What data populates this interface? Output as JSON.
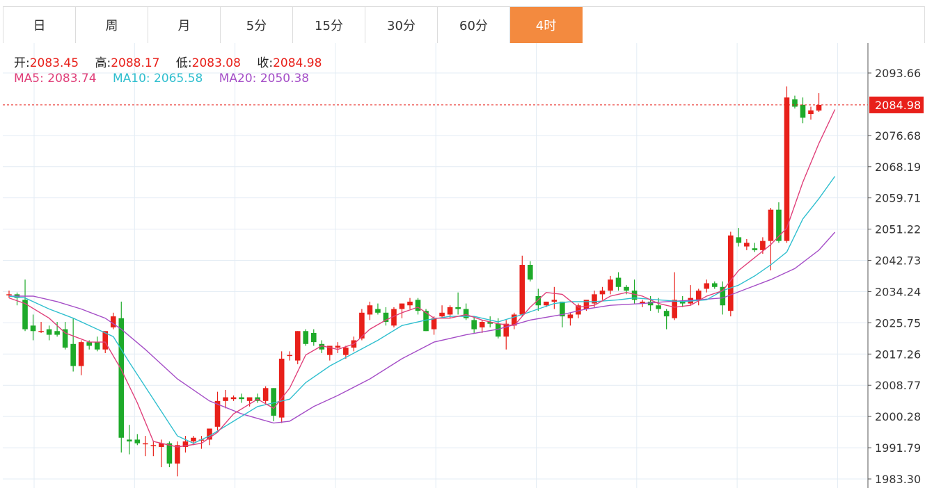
{
  "tabs": [
    {
      "label": "日",
      "active": false
    },
    {
      "label": "周",
      "active": false
    },
    {
      "label": "月",
      "active": false
    },
    {
      "label": "5分",
      "active": false
    },
    {
      "label": "15分",
      "active": false
    },
    {
      "label": "30分",
      "active": false
    },
    {
      "label": "60分",
      "active": false
    },
    {
      "label": "4时",
      "active": true
    }
  ],
  "ohlc": {
    "open_label": "开:",
    "open": "2083.45",
    "high_label": "高:",
    "high": "2088.17",
    "low_label": "低:",
    "low": "2083.08",
    "close_label": "收:",
    "close": "2084.98"
  },
  "ma": {
    "ma5_label": "MA5:",
    "ma5": "2083.74",
    "ma10_label": "MA10:",
    "ma10": "2065.58",
    "ma20_label": "MA20:",
    "ma20": "2050.38"
  },
  "colors": {
    "up": "#e8201a",
    "down": "#1eaa2a",
    "ma5": "#e0407a",
    "ma10": "#30bfcf",
    "ma20": "#a54ec7",
    "active_tab": "#f38a3f",
    "grid": "#e3ecf4"
  },
  "chart_data": {
    "type": "candlestick",
    "current_price": "2084.98",
    "y_ticks": [
      "2093.66",
      "2076.68",
      "2068.19",
      "2059.71",
      "2051.22",
      "2042.73",
      "2034.24",
      "2025.75",
      "2017.26",
      "2008.77",
      "2000.28",
      "1991.79",
      "1983.30"
    ],
    "ylim": [
      1983.3,
      2093.66
    ],
    "candles": [
      [
        2033.5,
        2034.5,
        2032.5,
        2033.5
      ],
      [
        2033.5,
        2034.0,
        2030.5,
        2032.5
      ],
      [
        2032.0,
        2037.5,
        2023.5,
        2024.0
      ],
      [
        2025.0,
        2028.0,
        2021.0,
        2023.5
      ],
      [
        2023.5,
        2026.0,
        2023.0,
        2023.5
      ],
      [
        2024.0,
        2025.0,
        2021.0,
        2022.5
      ],
      [
        2023.5,
        2026.0,
        2022.0,
        2022.5
      ],
      [
        2024.0,
        2026.0,
        2018.5,
        2019.0
      ],
      [
        2020.0,
        2027.0,
        2012.5,
        2014.0
      ],
      [
        2014.0,
        2021.0,
        2011.5,
        2020.5
      ],
      [
        2020.5,
        2021.0,
        2018.5,
        2019.5
      ],
      [
        2020.5,
        2022.0,
        2018.0,
        2018.5
      ],
      [
        2018.5,
        2022.5,
        2017.5,
        2023.5
      ],
      [
        2024.5,
        2028.5,
        2024.0,
        2027.5
      ],
      [
        2027.0,
        2031.5,
        1990.5,
        1994.5
      ],
      [
        1994.0,
        1998.0,
        1990.0,
        1993.5
      ],
      [
        1994.0,
        1995.5,
        1992.5,
        1993.0
      ],
      [
        1993.0,
        1995.0,
        1989.5,
        1993.0
      ],
      [
        1992.5,
        1993.5,
        1989.5,
        1992.5
      ],
      [
        1992.0,
        1994.0,
        1986.5,
        1993.0
      ],
      [
        1993.0,
        1993.5,
        1986.5,
        1987.5
      ],
      [
        1987.5,
        1993.5,
        1984.0,
        1992.5
      ],
      [
        1992.0,
        1995.0,
        1990.5,
        1993.5
      ],
      [
        1993.5,
        1995.0,
        1992.5,
        1994.5
      ],
      [
        1994.0,
        1995.0,
        1991.5,
        1994.0
      ],
      [
        1994.0,
        1997.0,
        1992.5,
        1997.0
      ],
      [
        1997.5,
        2007.0,
        1996.5,
        2004.5
      ],
      [
        2004.5,
        2007.5,
        2002.5,
        2005.5
      ],
      [
        2005.0,
        2006.0,
        2004.5,
        2005.5
      ],
      [
        2005.5,
        2006.5,
        2004.0,
        2005.0
      ],
      [
        2004.5,
        2005.5,
        2003.0,
        2005.5
      ],
      [
        2005.5,
        2006.5,
        2004.0,
        2004.5
      ],
      [
        2004.5,
        2008.5,
        2003.5,
        2008.0
      ],
      [
        2008.0,
        2008.0,
        1999.0,
        2000.5
      ],
      [
        2000.0,
        2018.0,
        1998.5,
        2016.0
      ],
      [
        2017.0,
        2018.0,
        2015.5,
        2017.0
      ],
      [
        2015.5,
        2023.5,
        2014.5,
        2023.5
      ],
      [
        2023.5,
        2024.0,
        2019.5,
        2020.0
      ],
      [
        2023.0,
        2024.0,
        2019.5,
        2020.5
      ],
      [
        2020.0,
        2021.0,
        2017.5,
        2018.5
      ],
      [
        2017.0,
        2019.0,
        2015.5,
        2019.5
      ],
      [
        2019.0,
        2020.5,
        2017.5,
        2019.5
      ],
      [
        2017.0,
        2019.5,
        2016.0,
        2019.0
      ],
      [
        2019.0,
        2022.0,
        2018.0,
        2021.0
      ],
      [
        2021.5,
        2029.5,
        2021.0,
        2028.5
      ],
      [
        2028.0,
        2031.5,
        2026.5,
        2030.5
      ],
      [
        2029.5,
        2031.0,
        2028.0,
        2028.5
      ],
      [
        2028.5,
        2030.0,
        2025.0,
        2026.0
      ],
      [
        2025.0,
        2030.0,
        2024.5,
        2029.5
      ],
      [
        2029.5,
        2031.0,
        2027.0,
        2031.0
      ],
      [
        2030.5,
        2032.5,
        2029.5,
        2031.5
      ],
      [
        2032.0,
        2032.5,
        2028.0,
        2029.0
      ],
      [
        2029.0,
        2029.5,
        2023.5,
        2023.5
      ],
      [
        2024.0,
        2027.5,
        2022.5,
        2027.0
      ],
      [
        2027.5,
        2030.5,
        2027.0,
        2028.5
      ],
      [
        2028.0,
        2030.5,
        2027.0,
        2030.0
      ],
      [
        2030.0,
        2034.0,
        2028.0,
        2029.5
      ],
      [
        2029.5,
        2031.0,
        2026.5,
        2027.0
      ],
      [
        2026.5,
        2027.5,
        2023.0,
        2024.0
      ],
      [
        2024.5,
        2026.5,
        2023.0,
        2026.0
      ],
      [
        2026.0,
        2027.5,
        2024.5,
        2025.5
      ],
      [
        2025.5,
        2027.0,
        2021.5,
        2022.0
      ],
      [
        2022.0,
        2026.5,
        2018.5,
        2025.5
      ],
      [
        2025.0,
        2028.5,
        2024.0,
        2028.0
      ],
      [
        2028.0,
        2044.0,
        2027.5,
        2041.5
      ],
      [
        2041.5,
        2042.5,
        2037.0,
        2037.5
      ],
      [
        2033.0,
        2035.0,
        2029.0,
        2030.5
      ],
      [
        2030.5,
        2031.5,
        2030.0,
        2031.5
      ],
      [
        2031.5,
        2035.5,
        2029.5,
        2032.0
      ],
      [
        2031.5,
        2031.5,
        2024.5,
        2027.5
      ],
      [
        2027.0,
        2028.5,
        2025.0,
        2028.0
      ],
      [
        2028.0,
        2031.0,
        2027.0,
        2030.5
      ],
      [
        2029.5,
        2031.5,
        2029.0,
        2032.0
      ],
      [
        2031.0,
        2034.5,
        2030.0,
        2033.5
      ],
      [
        2033.5,
        2035.5,
        2032.0,
        2034.5
      ],
      [
        2034.5,
        2038.5,
        2033.5,
        2037.5
      ],
      [
        2038.0,
        2039.5,
        2034.5,
        2035.5
      ],
      [
        2035.5,
        2036.0,
        2033.5,
        2034.5
      ],
      [
        2034.5,
        2037.5,
        2031.0,
        2032.0
      ],
      [
        2031.0,
        2032.0,
        2030.0,
        2031.5
      ],
      [
        2031.5,
        2033.0,
        2029.0,
        2030.5
      ],
      [
        2030.5,
        2032.5,
        2028.5,
        2029.5
      ],
      [
        2029.0,
        2029.5,
        2024.0,
        2027.5
      ],
      [
        2027.0,
        2039.5,
        2026.5,
        2032.0
      ],
      [
        2031.5,
        2033.0,
        2030.0,
        2031.0
      ],
      [
        2031.0,
        2036.0,
        2030.5,
        2032.5
      ],
      [
        2032.0,
        2035.0,
        2030.5,
        2034.5
      ],
      [
        2035.0,
        2037.5,
        2034.0,
        2036.5
      ],
      [
        2036.5,
        2037.0,
        2035.0,
        2035.5
      ],
      [
        2035.5,
        2037.0,
        2028.0,
        2030.5
      ],
      [
        2029.0,
        2050.5,
        2027.5,
        2049.5
      ],
      [
        2049.0,
        2051.5,
        2046.5,
        2047.5
      ],
      [
        2046.5,
        2048.5,
        2045.5,
        2047.5
      ],
      [
        2046.0,
        2047.5,
        2045.0,
        2045.5
      ],
      [
        2045.5,
        2049.0,
        2044.5,
        2048.0
      ],
      [
        2048.0,
        2057.0,
        2040.0,
        2056.5
      ],
      [
        2056.5,
        2058.5,
        2047.5,
        2048.0
      ],
      [
        2048.0,
        2090.0,
        2047.5,
        2087.0
      ],
      [
        2086.5,
        2087.5,
        2084.0,
        2084.5
      ],
      [
        2085.0,
        2087.0,
        2080.0,
        2081.5
      ],
      [
        2082.5,
        2084.5,
        2081.0,
        2083.5
      ],
      [
        2083.45,
        2088.17,
        2083.08,
        2084.98
      ]
    ],
    "ma5": [
      [
        0,
        2032.5
      ],
      [
        2,
        2031.0
      ],
      [
        5,
        2027.0
      ],
      [
        7,
        2023.0
      ],
      [
        10,
        2020.5
      ],
      [
        12,
        2020.5
      ],
      [
        14,
        2013.0
      ],
      [
        16,
        2004.0
      ],
      [
        18,
        1993.5
      ],
      [
        21,
        1992.0
      ],
      [
        24,
        1993.0
      ],
      [
        26,
        1996.0
      ],
      [
        28,
        2001.0
      ],
      [
        31,
        2005.0
      ],
      [
        33,
        2002.5
      ],
      [
        35,
        2008.0
      ],
      [
        37,
        2017.0
      ],
      [
        39,
        2019.5
      ],
      [
        41,
        2018.5
      ],
      [
        43,
        2020.0
      ],
      [
        45,
        2024.0
      ],
      [
        47,
        2026.5
      ],
      [
        49,
        2028.5
      ],
      [
        51,
        2030.0
      ],
      [
        53,
        2027.0
      ],
      [
        55,
        2027.0
      ],
      [
        57,
        2028.0
      ],
      [
        59,
        2026.5
      ],
      [
        61,
        2025.5
      ],
      [
        63,
        2025.0
      ],
      [
        65,
        2030.0
      ],
      [
        67,
        2034.0
      ],
      [
        69,
        2033.5
      ],
      [
        71,
        2030.0
      ],
      [
        73,
        2030.5
      ],
      [
        75,
        2033.0
      ],
      [
        77,
        2034.0
      ],
      [
        79,
        2033.0
      ],
      [
        81,
        2031.0
      ],
      [
        83,
        2030.0
      ],
      [
        85,
        2030.5
      ],
      [
        87,
        2033.0
      ],
      [
        89,
        2034.5
      ],
      [
        91,
        2040.0
      ],
      [
        93,
        2043.5
      ],
      [
        95,
        2047.0
      ],
      [
        97,
        2051.5
      ],
      [
        99,
        2064.0
      ],
      [
        101,
        2074.5
      ],
      [
        103,
        2083.74
      ]
    ],
    "ma10": [
      [
        0,
        2033.0
      ],
      [
        2,
        2032.5
      ],
      [
        5,
        2029.5
      ],
      [
        8,
        2027.0
      ],
      [
        10,
        2025.0
      ],
      [
        12,
        2023.0
      ],
      [
        13,
        2022.0
      ],
      [
        15,
        2015.0
      ],
      [
        18,
        2005.0
      ],
      [
        21,
        1995.0
      ],
      [
        23,
        1993.0
      ],
      [
        25,
        1995.0
      ],
      [
        28,
        1999.0
      ],
      [
        31,
        2003.0
      ],
      [
        33,
        2004.0
      ],
      [
        35,
        2005.0
      ],
      [
        37,
        2009.5
      ],
      [
        40,
        2014.0
      ],
      [
        43,
        2017.5
      ],
      [
        46,
        2021.0
      ],
      [
        49,
        2025.0
      ],
      [
        52,
        2026.5
      ],
      [
        55,
        2027.5
      ],
      [
        58,
        2027.5
      ],
      [
        61,
        2026.0
      ],
      [
        64,
        2028.0
      ],
      [
        66,
        2029.5
      ],
      [
        68,
        2031.0
      ],
      [
        70,
        2031.5
      ],
      [
        73,
        2031.5
      ],
      [
        76,
        2032.0
      ],
      [
        78,
        2032.5
      ],
      [
        81,
        2032.0
      ],
      [
        84,
        2031.5
      ],
      [
        87,
        2032.0
      ],
      [
        89,
        2034.5
      ],
      [
        91,
        2036.0
      ],
      [
        93,
        2038.5
      ],
      [
        95,
        2041.5
      ],
      [
        97,
        2045.0
      ],
      [
        99,
        2054.0
      ],
      [
        101,
        2059.5
      ],
      [
        103,
        2065.58
      ]
    ],
    "ma20": [
      [
        0,
        2033.0
      ],
      [
        3,
        2033.0
      ],
      [
        6,
        2031.5
      ],
      [
        9,
        2029.5
      ],
      [
        12,
        2027.0
      ],
      [
        14,
        2024.0
      ],
      [
        17,
        2018.5
      ],
      [
        21,
        2010.5
      ],
      [
        25,
        2004.5
      ],
      [
        29,
        2001.0
      ],
      [
        33,
        1998.5
      ],
      [
        35,
        1999.0
      ],
      [
        38,
        2003.0
      ],
      [
        41,
        2006.0
      ],
      [
        45,
        2010.5
      ],
      [
        49,
        2016.0
      ],
      [
        53,
        2020.5
      ],
      [
        57,
        2022.5
      ],
      [
        61,
        2024.0
      ],
      [
        65,
        2026.5
      ],
      [
        69,
        2028.0
      ],
      [
        72,
        2029.5
      ],
      [
        75,
        2030.5
      ],
      [
        79,
        2031.0
      ],
      [
        82,
        2031.5
      ],
      [
        86,
        2032.0
      ],
      [
        89,
        2032.5
      ],
      [
        92,
        2035.0
      ],
      [
        95,
        2037.5
      ],
      [
        98,
        2040.5
      ],
      [
        101,
        2045.5
      ],
      [
        103,
        2050.38
      ]
    ]
  }
}
